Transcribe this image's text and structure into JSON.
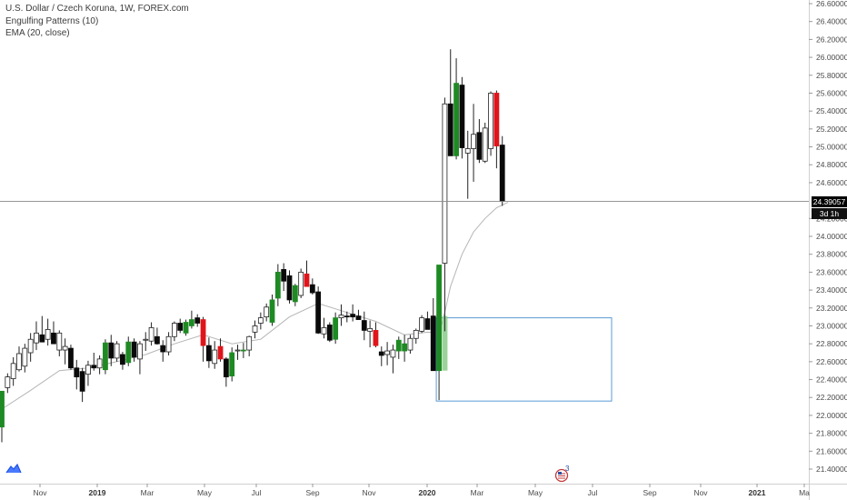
{
  "header": {
    "title": "U.S. Dollar / Czech Koruna, 1W, FOREX.com",
    "indicator_1": "Engulfing Patterns (10)",
    "indicator_2": "EMA (20, close)"
  },
  "price_label": {
    "value": "24.39057",
    "countdown": "3d 1h"
  },
  "badge_count": "3",
  "chart_data": {
    "type": "candlestick",
    "symbol": "USDCZK",
    "interval": "1W",
    "x_axis_labels": [
      "Nov",
      "2019",
      "Mar",
      "May",
      "Jul",
      "Sep",
      "Nov",
      "2020",
      "Mar",
      "May",
      "Jul",
      "Sep",
      "Nov",
      "2021",
      "Ma"
    ],
    "y_ticks": [
      "26.60000",
      "26.40000",
      "26.20000",
      "26.00000",
      "25.80000",
      "25.60000",
      "25.40000",
      "25.20000",
      "25.00000",
      "24.80000",
      "24.60000",
      "24.20000",
      "24.00000",
      "23.80000",
      "23.60000",
      "23.40000",
      "23.20000",
      "23.00000",
      "22.80000",
      "22.60000",
      "22.40000",
      "22.20000",
      "22.00000",
      "21.80000",
      "21.60000",
      "21.40000"
    ],
    "ylim": [
      21.3,
      26.75
    ],
    "last_price": 24.39057,
    "candles": [
      {
        "o": 21.87,
        "h": 22.27,
        "l": 21.7,
        "c": 22.27,
        "color": "green"
      },
      {
        "o": 22.31,
        "h": 22.47,
        "l": 22.25,
        "c": 22.43,
        "color": "white"
      },
      {
        "o": 22.41,
        "h": 22.65,
        "l": 22.33,
        "c": 22.58,
        "color": "white"
      },
      {
        "o": 22.51,
        "h": 22.77,
        "l": 22.49,
        "c": 22.69,
        "color": "white"
      },
      {
        "o": 22.55,
        "h": 22.8,
        "l": 22.48,
        "c": 22.75,
        "color": "white"
      },
      {
        "o": 22.7,
        "h": 22.92,
        "l": 22.6,
        "c": 22.85,
        "color": "white"
      },
      {
        "o": 22.81,
        "h": 23.05,
        "l": 22.73,
        "c": 22.92,
        "color": "white"
      },
      {
        "o": 22.9,
        "h": 23.11,
        "l": 22.82,
        "c": 22.82,
        "color": "black"
      },
      {
        "o": 22.85,
        "h": 23.08,
        "l": 22.78,
        "c": 22.96,
        "color": "white"
      },
      {
        "o": 22.92,
        "h": 23.05,
        "l": 22.83,
        "c": 22.8,
        "color": "black"
      },
      {
        "o": 22.73,
        "h": 22.95,
        "l": 22.66,
        "c": 22.92,
        "color": "white"
      },
      {
        "o": 22.77,
        "h": 22.86,
        "l": 22.57,
        "c": 22.73,
        "color": "white"
      },
      {
        "o": 22.75,
        "h": 22.79,
        "l": 22.51,
        "c": 22.53,
        "color": "black"
      },
      {
        "o": 22.53,
        "h": 22.62,
        "l": 22.29,
        "c": 22.43,
        "color": "black"
      },
      {
        "o": 22.49,
        "h": 22.53,
        "l": 22.15,
        "c": 22.27,
        "color": "black"
      },
      {
        "o": 22.46,
        "h": 22.61,
        "l": 22.33,
        "c": 22.56,
        "color": "white"
      },
      {
        "o": 22.56,
        "h": 22.7,
        "l": 22.5,
        "c": 22.53,
        "color": "black"
      },
      {
        "o": 22.53,
        "h": 22.67,
        "l": 22.46,
        "c": 22.63,
        "color": "white"
      },
      {
        "o": 22.51,
        "h": 22.85,
        "l": 22.46,
        "c": 22.81,
        "color": "green"
      },
      {
        "o": 22.81,
        "h": 22.9,
        "l": 22.55,
        "c": 22.64,
        "color": "black"
      },
      {
        "o": 22.64,
        "h": 22.83,
        "l": 22.6,
        "c": 22.8,
        "color": "white"
      },
      {
        "o": 22.68,
        "h": 22.71,
        "l": 22.51,
        "c": 22.57,
        "color": "black"
      },
      {
        "o": 22.59,
        "h": 22.88,
        "l": 22.55,
        "c": 22.82,
        "color": "green"
      },
      {
        "o": 22.82,
        "h": 22.86,
        "l": 22.6,
        "c": 22.65,
        "color": "black"
      },
      {
        "o": 22.63,
        "h": 22.83,
        "l": 22.46,
        "c": 22.8,
        "color": "white"
      },
      {
        "o": 22.85,
        "h": 22.93,
        "l": 22.72,
        "c": 22.85,
        "color": "white"
      },
      {
        "o": 22.83,
        "h": 23.04,
        "l": 22.78,
        "c": 22.98,
        "color": "white"
      },
      {
        "o": 22.88,
        "h": 22.98,
        "l": 22.79,
        "c": 22.8,
        "color": "black"
      },
      {
        "o": 22.78,
        "h": 22.84,
        "l": 22.6,
        "c": 22.71,
        "color": "black"
      },
      {
        "o": 22.71,
        "h": 22.93,
        "l": 22.67,
        "c": 22.88,
        "color": "white"
      },
      {
        "o": 22.88,
        "h": 23.05,
        "l": 22.83,
        "c": 23.03,
        "color": "white"
      },
      {
        "o": 23.03,
        "h": 23.08,
        "l": 22.92,
        "c": 22.95,
        "color": "black"
      },
      {
        "o": 22.92,
        "h": 23.07,
        "l": 22.89,
        "c": 23.04,
        "color": "green"
      },
      {
        "o": 23.0,
        "h": 23.17,
        "l": 22.97,
        "c": 23.07,
        "color": "green"
      },
      {
        "o": 23.09,
        "h": 23.13,
        "l": 22.99,
        "c": 23.03,
        "color": "black"
      },
      {
        "o": 23.07,
        "h": 23.1,
        "l": 22.6,
        "c": 22.78,
        "color": "red"
      },
      {
        "o": 22.78,
        "h": 22.87,
        "l": 22.53,
        "c": 22.61,
        "color": "black"
      },
      {
        "o": 22.58,
        "h": 22.83,
        "l": 22.52,
        "c": 22.73,
        "color": "white"
      },
      {
        "o": 22.77,
        "h": 22.86,
        "l": 22.6,
        "c": 22.63,
        "color": "red"
      },
      {
        "o": 22.63,
        "h": 22.65,
        "l": 22.32,
        "c": 22.43,
        "color": "black"
      },
      {
        "o": 22.44,
        "h": 22.76,
        "l": 22.38,
        "c": 22.7,
        "color": "green"
      },
      {
        "o": 22.73,
        "h": 22.79,
        "l": 22.62,
        "c": 22.73,
        "color": "white"
      },
      {
        "o": 22.72,
        "h": 22.81,
        "l": 22.64,
        "c": 22.73,
        "color": "green"
      },
      {
        "o": 22.73,
        "h": 22.89,
        "l": 22.66,
        "c": 22.88,
        "color": "white"
      },
      {
        "o": 22.93,
        "h": 23.06,
        "l": 22.86,
        "c": 23.0,
        "color": "white"
      },
      {
        "o": 23.03,
        "h": 23.15,
        "l": 22.96,
        "c": 23.09,
        "color": "white"
      },
      {
        "o": 23.1,
        "h": 23.25,
        "l": 23.05,
        "c": 23.21,
        "color": "white"
      },
      {
        "o": 23.04,
        "h": 23.35,
        "l": 23.0,
        "c": 23.29,
        "color": "green"
      },
      {
        "o": 23.31,
        "h": 23.69,
        "l": 23.22,
        "c": 23.6,
        "color": "green"
      },
      {
        "o": 23.63,
        "h": 23.7,
        "l": 23.39,
        "c": 23.5,
        "color": "black"
      },
      {
        "o": 23.56,
        "h": 23.62,
        "l": 23.25,
        "c": 23.29,
        "color": "black"
      },
      {
        "o": 23.27,
        "h": 23.47,
        "l": 23.22,
        "c": 23.45,
        "color": "green"
      },
      {
        "o": 23.34,
        "h": 23.64,
        "l": 23.31,
        "c": 23.6,
        "color": "white"
      },
      {
        "o": 23.58,
        "h": 23.73,
        "l": 23.44,
        "c": 23.44,
        "color": "red"
      },
      {
        "o": 23.46,
        "h": 23.53,
        "l": 23.35,
        "c": 23.37,
        "color": "black"
      },
      {
        "o": 23.38,
        "h": 23.44,
        "l": 22.91,
        "c": 22.92,
        "color": "black"
      },
      {
        "o": 22.91,
        "h": 23.09,
        "l": 22.86,
        "c": 22.98,
        "color": "white"
      },
      {
        "o": 23.01,
        "h": 23.04,
        "l": 22.82,
        "c": 22.84,
        "color": "black"
      },
      {
        "o": 22.85,
        "h": 23.15,
        "l": 22.8,
        "c": 23.09,
        "color": "green"
      },
      {
        "o": 23.09,
        "h": 23.24,
        "l": 23.0,
        "c": 23.12,
        "color": "white"
      },
      {
        "o": 23.11,
        "h": 23.16,
        "l": 23.04,
        "c": 23.1,
        "color": "black"
      },
      {
        "o": 23.1,
        "h": 23.24,
        "l": 23.05,
        "c": 23.13,
        "color": "black"
      },
      {
        "o": 23.11,
        "h": 23.18,
        "l": 23.07,
        "c": 23.07,
        "color": "black"
      },
      {
        "o": 23.06,
        "h": 23.16,
        "l": 22.84,
        "c": 22.95,
        "color": "black"
      },
      {
        "o": 22.94,
        "h": 23.06,
        "l": 22.76,
        "c": 22.97,
        "color": "white"
      },
      {
        "o": 22.95,
        "h": 23.04,
        "l": 22.76,
        "c": 22.78,
        "color": "red"
      },
      {
        "o": 22.71,
        "h": 22.77,
        "l": 22.55,
        "c": 22.67,
        "color": "black"
      },
      {
        "o": 22.72,
        "h": 22.82,
        "l": 22.56,
        "c": 22.68,
        "color": "white"
      },
      {
        "o": 22.65,
        "h": 22.79,
        "l": 22.47,
        "c": 22.73,
        "color": "white"
      },
      {
        "o": 22.72,
        "h": 22.88,
        "l": 22.63,
        "c": 22.84,
        "color": "green"
      },
      {
        "o": 22.8,
        "h": 22.9,
        "l": 22.6,
        "c": 22.72,
        "color": "green"
      },
      {
        "o": 22.73,
        "h": 22.9,
        "l": 22.69,
        "c": 22.86,
        "color": "white"
      },
      {
        "o": 22.86,
        "h": 22.97,
        "l": 22.8,
        "c": 22.95,
        "color": "white"
      },
      {
        "o": 22.94,
        "h": 23.12,
        "l": 22.92,
        "c": 23.09,
        "color": "white"
      },
      {
        "o": 23.08,
        "h": 23.16,
        "l": 22.96,
        "c": 22.96,
        "color": "black"
      },
      {
        "o": 23.11,
        "h": 23.31,
        "l": 22.5,
        "c": 22.5,
        "color": "black"
      },
      {
        "o": 22.5,
        "h": 23.68,
        "l": 22.17,
        "c": 23.68,
        "color": "green"
      },
      {
        "o": 23.7,
        "h": 25.55,
        "l": 22.94,
        "c": 25.48,
        "color": "white"
      },
      {
        "o": 25.48,
        "h": 26.09,
        "l": 24.9,
        "c": 24.9,
        "color": "black"
      },
      {
        "o": 24.9,
        "h": 25.99,
        "l": 24.86,
        "c": 25.71,
        "color": "green"
      },
      {
        "o": 25.69,
        "h": 25.78,
        "l": 24.87,
        "c": 24.99,
        "color": "black"
      },
      {
        "o": 24.93,
        "h": 25.18,
        "l": 24.42,
        "c": 24.98,
        "color": "white"
      },
      {
        "o": 24.98,
        "h": 25.48,
        "l": 24.61,
        "c": 25.14,
        "color": "white"
      },
      {
        "o": 25.16,
        "h": 25.31,
        "l": 24.82,
        "c": 24.86,
        "color": "black"
      },
      {
        "o": 24.84,
        "h": 25.27,
        "l": 24.82,
        "c": 25.21,
        "color": "white"
      },
      {
        "o": 24.98,
        "h": 25.62,
        "l": 24.9,
        "c": 25.6,
        "color": "white"
      },
      {
        "o": 25.6,
        "h": 25.63,
        "l": 24.76,
        "c": 25.01,
        "color": "red"
      },
      {
        "o": 25.02,
        "h": 25.12,
        "l": 24.34,
        "c": 24.39,
        "color": "black"
      }
    ],
    "ema_20": [
      {
        "i": 0,
        "v": 22.07
      },
      {
        "i": 5,
        "v": 22.28
      },
      {
        "i": 10,
        "v": 22.5
      },
      {
        "i": 15,
        "v": 22.53
      },
      {
        "i": 20,
        "v": 22.6
      },
      {
        "i": 25,
        "v": 22.68
      },
      {
        "i": 30,
        "v": 22.8
      },
      {
        "i": 35,
        "v": 22.9
      },
      {
        "i": 40,
        "v": 22.8
      },
      {
        "i": 45,
        "v": 22.85
      },
      {
        "i": 50,
        "v": 23.1
      },
      {
        "i": 55,
        "v": 23.25
      },
      {
        "i": 60,
        "v": 23.15
      },
      {
        "i": 65,
        "v": 23.05
      },
      {
        "i": 70,
        "v": 22.9
      },
      {
        "i": 74,
        "v": 22.93
      },
      {
        "i": 76,
        "v": 22.92
      },
      {
        "i": 77,
        "v": 23.15
      },
      {
        "i": 78,
        "v": 23.44
      },
      {
        "i": 80,
        "v": 23.8
      },
      {
        "i": 82,
        "v": 24.05
      },
      {
        "i": 84,
        "v": 24.2
      },
      {
        "i": 86,
        "v": 24.32
      },
      {
        "i": 88,
        "v": 24.38
      }
    ],
    "engulfing_highlight": {
      "from": 76,
      "to": 77,
      "low": 22.5,
      "high": 23.11
    },
    "drawn_rectangle": {
      "from": 76,
      "to": 101,
      "low": 22.16,
      "high": 23.09
    }
  }
}
